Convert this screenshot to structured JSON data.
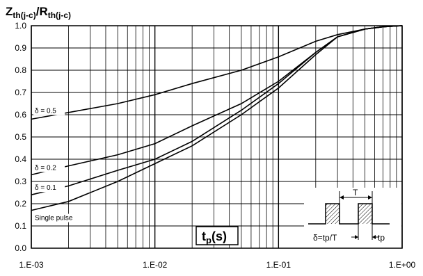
{
  "chart_data": {
    "type": "line",
    "ylabel_main": "Z",
    "ylabel_main_sub": "th(j-c)",
    "ylabel_slash": "/R",
    "ylabel_denom_sub": "th(j-c)",
    "xlabel_main": "t",
    "xlabel_sub": "p",
    "xlabel_unit": "(s)",
    "x_scale": "log",
    "xlim": [
      0.001,
      1.0
    ],
    "ylim": [
      0.0,
      1.0
    ],
    "grid": true,
    "x_ticks": [
      "1.E-03",
      "1.E-02",
      "1.E-01",
      "1.E+00"
    ],
    "y_ticks": [
      "0.0",
      "0.1",
      "0.2",
      "0.3",
      "0.4",
      "0.5",
      "0.6",
      "0.7",
      "0.8",
      "0.9",
      "1.0"
    ],
    "series": [
      {
        "name": "δ = 0.5",
        "x": [
          0.001,
          0.002,
          0.005,
          0.01,
          0.02,
          0.05,
          0.1,
          0.2,
          0.3,
          0.5,
          0.7,
          1.0
        ],
        "y": [
          0.58,
          0.61,
          0.65,
          0.69,
          0.74,
          0.8,
          0.86,
          0.93,
          0.96,
          0.985,
          0.995,
          1.0
        ]
      },
      {
        "name": "δ = 0.2",
        "x": [
          0.001,
          0.002,
          0.005,
          0.01,
          0.02,
          0.05,
          0.1,
          0.2,
          0.3,
          0.5,
          0.7,
          1.0
        ],
        "y": [
          0.33,
          0.37,
          0.42,
          0.47,
          0.55,
          0.65,
          0.75,
          0.88,
          0.95,
          0.985,
          0.995,
          1.0
        ]
      },
      {
        "name": "δ = 0.1",
        "x": [
          0.001,
          0.002,
          0.005,
          0.01,
          0.02,
          0.05,
          0.1,
          0.2,
          0.3,
          0.5,
          0.7,
          1.0
        ],
        "y": [
          0.24,
          0.28,
          0.35,
          0.4,
          0.48,
          0.62,
          0.74,
          0.88,
          0.95,
          0.985,
          0.995,
          1.0
        ]
      },
      {
        "name": "Single pulse",
        "x": [
          0.001,
          0.002,
          0.005,
          0.01,
          0.02,
          0.05,
          0.1,
          0.2,
          0.3,
          0.5,
          0.7,
          1.0
        ],
        "y": [
          0.17,
          0.21,
          0.3,
          0.38,
          0.46,
          0.6,
          0.72,
          0.87,
          0.95,
          0.985,
          0.995,
          1.0
        ]
      }
    ],
    "inset": {
      "period_label": "T",
      "delta_label": "δ=tp/T",
      "tp_label": "tp"
    }
  },
  "colors": {
    "line": "#000000",
    "grid": "#000000",
    "background": "#ffffff"
  }
}
